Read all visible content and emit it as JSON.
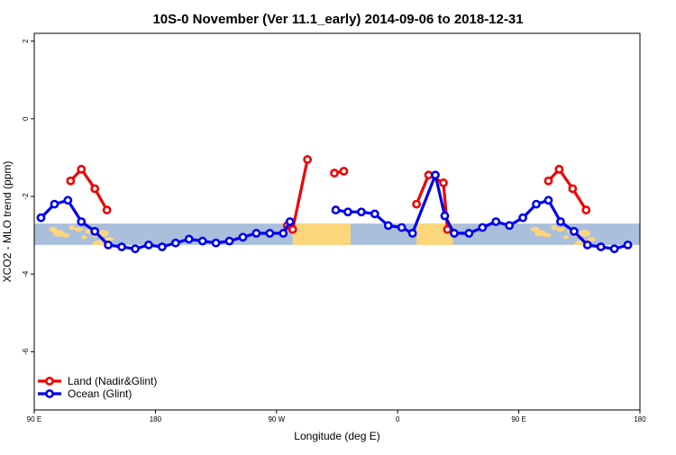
{
  "chart_data": {
    "type": "line",
    "title": "10S-0 November (Ver 11.1_early)   2014-09-06 to 2018-12-31",
    "xlabel": "Longitude (deg E)",
    "ylabel": "XCO2 - MLO trend (ppm)",
    "xlim": [
      90,
      540
    ],
    "ylim": [
      -7.5,
      2.2
    ],
    "grid": false,
    "legend_position": "bottom-left",
    "x_ticks": [
      {
        "value": 90,
        "label": "90 E"
      },
      {
        "value": 180,
        "label": "180"
      },
      {
        "value": 270,
        "label": "90 W"
      },
      {
        "value": 360,
        "label": "0"
      },
      {
        "value": 450,
        "label": "90 E"
      },
      {
        "value": 540,
        "label": "180"
      }
    ],
    "y_ticks": [
      {
        "value": 2,
        "label": "2"
      },
      {
        "value": 0,
        "label": "0"
      },
      {
        "value": -2,
        "label": "-2"
      },
      {
        "value": -4,
        "label": "-4"
      },
      {
        "value": -6,
        "label": "-6"
      }
    ],
    "background_band": {
      "y_range": [
        -3.25,
        -2.7
      ],
      "ocean_color": "#a9bfdc",
      "land_color": "#fcd67a",
      "land_x_ranges": [
        [
          282,
          325
        ],
        [
          374,
          401
        ]
      ]
    },
    "series": [
      {
        "name": "Land (Nadir&Glint)",
        "color": "#ee0000",
        "segments": [
          [
            [
              117,
              -1.6
            ],
            [
              125,
              -1.3
            ],
            [
              135,
              -1.8
            ],
            [
              144,
              -2.35
            ]
          ],
          [
            [
              278,
              -2.75
            ],
            [
              282,
              -2.85
            ],
            [
              293,
              -1.05
            ]
          ],
          [
            [
              313,
              -1.4
            ],
            [
              320,
              -1.35
            ]
          ],
          [
            [
              374,
              -2.2
            ],
            [
              383,
              -1.45
            ],
            [
              394,
              -1.65
            ],
            [
              397,
              -2.85
            ]
          ],
          [
            [
              472,
              -1.6
            ],
            [
              480,
              -1.3
            ],
            [
              490,
              -1.8
            ],
            [
              500,
              -2.35
            ]
          ]
        ]
      },
      {
        "name": "Ocean (Glint)",
        "color": "#0000ee",
        "segments": [
          [
            [
              95,
              -2.55
            ],
            [
              105,
              -2.2
            ],
            [
              115,
              -2.1
            ],
            [
              125,
              -2.65
            ],
            [
              135,
              -2.9
            ],
            [
              145,
              -3.25
            ],
            [
              155,
              -3.3
            ],
            [
              165,
              -3.35
            ],
            [
              175,
              -3.25
            ],
            [
              185,
              -3.3
            ],
            [
              195,
              -3.2
            ],
            [
              205,
              -3.1
            ],
            [
              215,
              -3.15
            ],
            [
              225,
              -3.2
            ],
            [
              235,
              -3.15
            ],
            [
              245,
              -3.05
            ],
            [
              255,
              -2.95
            ],
            [
              265,
              -2.95
            ],
            [
              275,
              -2.95
            ],
            [
              280,
              -2.65
            ]
          ],
          [
            [
              314,
              -2.35
            ],
            [
              323,
              -2.4
            ],
            [
              333,
              -2.4
            ],
            [
              343,
              -2.45
            ],
            [
              353,
              -2.75
            ],
            [
              363,
              -2.8
            ],
            [
              371,
              -2.95
            ],
            [
              388,
              -1.45
            ],
            [
              395,
              -2.5
            ],
            [
              402,
              -2.95
            ],
            [
              413,
              -2.95
            ],
            [
              423,
              -2.8
            ],
            [
              433,
              -2.65
            ],
            [
              443,
              -2.75
            ],
            [
              453,
              -2.55
            ],
            [
              463,
              -2.2
            ],
            [
              472,
              -2.1
            ],
            [
              481,
              -2.65
            ],
            [
              491,
              -2.9
            ],
            [
              501,
              -3.25
            ],
            [
              511,
              -3.3
            ],
            [
              521,
              -3.35
            ],
            [
              531,
              -3.25
            ]
          ]
        ]
      }
    ]
  }
}
